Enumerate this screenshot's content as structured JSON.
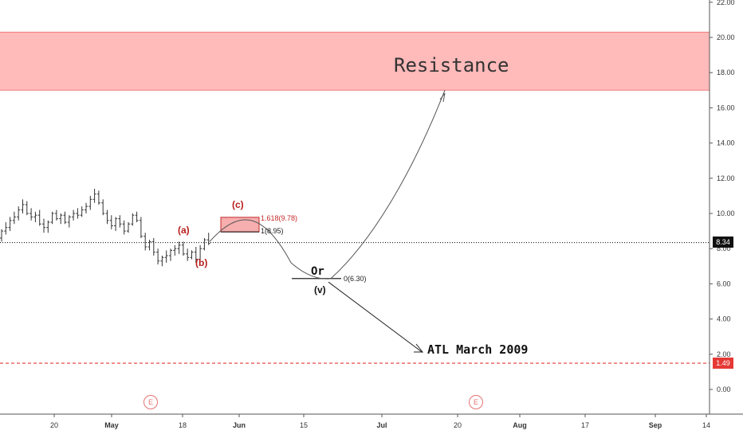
{
  "chart_data": {
    "type": "candlestick",
    "price_axis": {
      "ylim": [
        -1.5,
        22.6
      ],
      "ticks": [
        "22.00",
        "20.00",
        "18.00",
        "16.00",
        "14.00",
        "12.00",
        "10.00",
        "8.00",
        "6.00",
        "4.00",
        "2.00",
        "0.00"
      ],
      "tick_values": [
        22,
        20,
        18,
        16,
        14,
        12,
        10,
        8,
        6,
        4,
        2,
        0
      ]
    },
    "time_axis": {
      "labels": [
        "20",
        "May",
        "18",
        "Jun",
        "15",
        "Jul",
        "20",
        "Aug",
        "17",
        "Sep",
        "14"
      ]
    },
    "resistance_zone": {
      "low": 17.0,
      "high": 20.3,
      "label": "Resistance"
    },
    "current_price": {
      "value": 8.34,
      "label": "8.34"
    },
    "atl_level": {
      "value": 1.49,
      "label": "1.49"
    },
    "fib_levels": [
      {
        "ratio_label": "1.618(9.78)",
        "value": 9.78
      },
      {
        "ratio_label": "1(8.95)",
        "value": 8.95
      },
      {
        "ratio_label": "0(6.30)",
        "value": 6.3
      }
    ],
    "wave_labels": {
      "a": "(a)",
      "b": "(b)",
      "c": "(c)",
      "v": "(v)"
    },
    "alternative_label": "Or",
    "atl_label": "ATL March 2009",
    "earnings_label": "E",
    "projection_paths": [
      {
        "name": "up",
        "points": [
          [
            8.4,
            8.5
          ],
          [
            9.7,
            8.6
          ],
          [
            6.3,
            6.0
          ],
          [
            17.0,
            12.0
          ]
        ]
      },
      {
        "name": "down",
        "points": [
          [
            6.3,
            6.0
          ],
          [
            2.0,
            8.7
          ]
        ]
      }
    ],
    "candles": [
      [
        8.6,
        9.1,
        8.4,
        9.0
      ],
      [
        9.0,
        9.5,
        8.8,
        9.2
      ],
      [
        9.2,
        9.8,
        9.0,
        9.6
      ],
      [
        9.6,
        10.1,
        9.4,
        9.8
      ],
      [
        9.8,
        10.4,
        9.6,
        10.2
      ],
      [
        10.2,
        10.8,
        10.0,
        10.5
      ],
      [
        10.5,
        10.7,
        9.9,
        10.0
      ],
      [
        10.0,
        10.3,
        9.6,
        9.8
      ],
      [
        9.8,
        10.1,
        9.5,
        9.9
      ],
      [
        9.9,
        10.2,
        9.3,
        9.4
      ],
      [
        9.4,
        9.7,
        8.9,
        9.2
      ],
      [
        9.2,
        9.6,
        8.9,
        9.5
      ],
      [
        9.5,
        10.1,
        9.4,
        10.0
      ],
      [
        10.0,
        10.2,
        9.6,
        9.7
      ],
      [
        9.7,
        10.0,
        9.4,
        9.9
      ],
      [
        9.9,
        10.1,
        9.4,
        9.5
      ],
      [
        9.5,
        9.9,
        9.2,
        9.8
      ],
      [
        9.8,
        10.2,
        9.6,
        10.0
      ],
      [
        10.0,
        10.3,
        9.7,
        9.9
      ],
      [
        9.9,
        10.4,
        9.8,
        10.2
      ],
      [
        10.2,
        10.6,
        10.0,
        10.4
      ],
      [
        10.4,
        11.0,
        10.2,
        10.8
      ],
      [
        10.8,
        11.4,
        10.6,
        11.1
      ],
      [
        11.1,
        11.3,
        10.5,
        10.6
      ],
      [
        10.6,
        10.8,
        9.9,
        10.0
      ],
      [
        10.0,
        10.2,
        9.4,
        9.6
      ],
      [
        9.6,
        9.9,
        9.1,
        9.3
      ],
      [
        9.3,
        9.8,
        9.0,
        9.7
      ],
      [
        9.7,
        9.9,
        9.2,
        9.4
      ],
      [
        9.4,
        9.6,
        8.8,
        9.0
      ],
      [
        9.0,
        9.5,
        8.9,
        9.4
      ],
      [
        9.4,
        10.0,
        9.3,
        9.9
      ],
      [
        9.9,
        10.1,
        9.5,
        9.6
      ],
      [
        9.6,
        9.8,
        8.6,
        8.7
      ],
      [
        8.7,
        8.9,
        7.9,
        8.1
      ],
      [
        8.1,
        8.5,
        7.9,
        8.4
      ],
      [
        8.4,
        8.6,
        7.6,
        7.8
      ],
      [
        7.8,
        8.0,
        7.1,
        7.3
      ],
      [
        7.3,
        7.6,
        7.0,
        7.5
      ],
      [
        7.5,
        7.9,
        7.2,
        7.6
      ],
      [
        7.6,
        8.0,
        7.3,
        7.9
      ],
      [
        7.9,
        8.2,
        7.6,
        8.0
      ],
      [
        8.0,
        8.4,
        7.7,
        8.2
      ],
      [
        8.2,
        8.4,
        7.6,
        7.7
      ],
      [
        7.7,
        8.0,
        7.3,
        7.5
      ],
      [
        7.5,
        7.9,
        7.4,
        7.8
      ],
      [
        7.8,
        8.1,
        7.2,
        7.4
      ],
      [
        7.4,
        8.2,
        7.3,
        8.0
      ],
      [
        8.0,
        8.6,
        7.9,
        8.5
      ],
      [
        8.5,
        8.9,
        8.2,
        8.3
      ]
    ]
  },
  "colors": {
    "zone_fill": "#ffb3b3",
    "zone_edge": "#f07a7a",
    "wave_red": "#b71c1c",
    "atl_line": "#e53935",
    "price_line": "#000000",
    "candle": "#333333"
  }
}
